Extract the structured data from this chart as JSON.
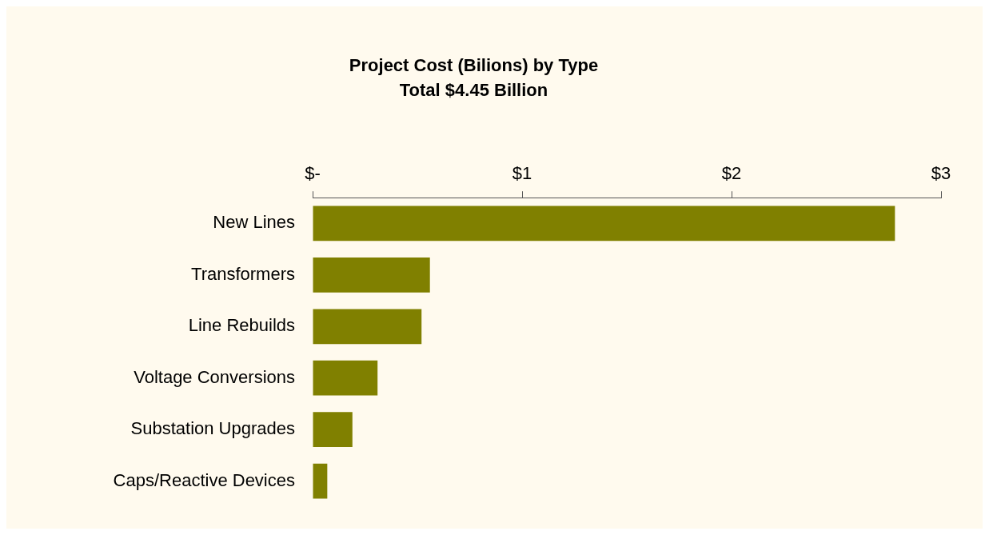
{
  "chart_data": {
    "type": "bar",
    "orientation": "horizontal",
    "title": "Project Cost (Bilions) by Type",
    "subtitle": "Total $4.45 Billion",
    "categories": [
      "New Lines",
      "Transformers",
      "Line Rebuilds",
      "Voltage Conversions",
      "Substation Upgrades",
      "Caps/Reactive Devices"
    ],
    "values": [
      2.78,
      0.56,
      0.52,
      0.31,
      0.19,
      0.07
    ],
    "color": "#808000",
    "xlim": [
      0,
      3
    ],
    "xticks": [
      {
        "value": 0,
        "label": "$-"
      },
      {
        "value": 1,
        "label": "$1"
      },
      {
        "value": 2,
        "label": "$2"
      },
      {
        "value": 3,
        "label": "$3"
      }
    ],
    "grid": false,
    "legend": false
  }
}
